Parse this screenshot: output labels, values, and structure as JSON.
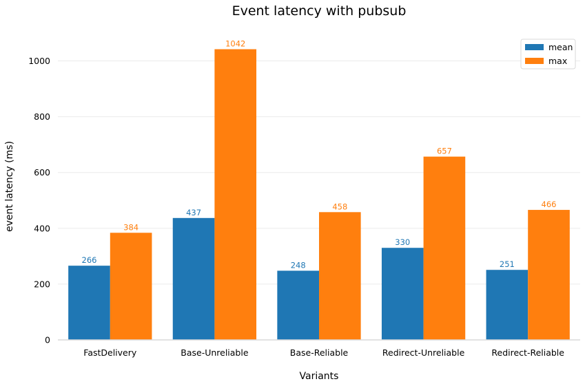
{
  "chart_data": {
    "type": "bar",
    "title": "Event latency with pubsub",
    "xlabel": "Variants",
    "ylabel": "event latency (ms)",
    "ylim": [
      0,
      1100
    ],
    "yticks": [
      0,
      200,
      400,
      600,
      800,
      1000
    ],
    "grid": true,
    "legend_position": "top-right",
    "categories": [
      "FastDelivery",
      "Base-Unreliable",
      "Base-Reliable",
      "Redirect-Unreliable",
      "Redirect-Reliable"
    ],
    "series": [
      {
        "name": "mean",
        "color": "#1f77b4",
        "values": [
          266,
          437,
          248,
          330,
          251
        ]
      },
      {
        "name": "max",
        "color": "#ff7f0e",
        "values": [
          384,
          1042,
          458,
          657,
          466
        ]
      }
    ]
  }
}
